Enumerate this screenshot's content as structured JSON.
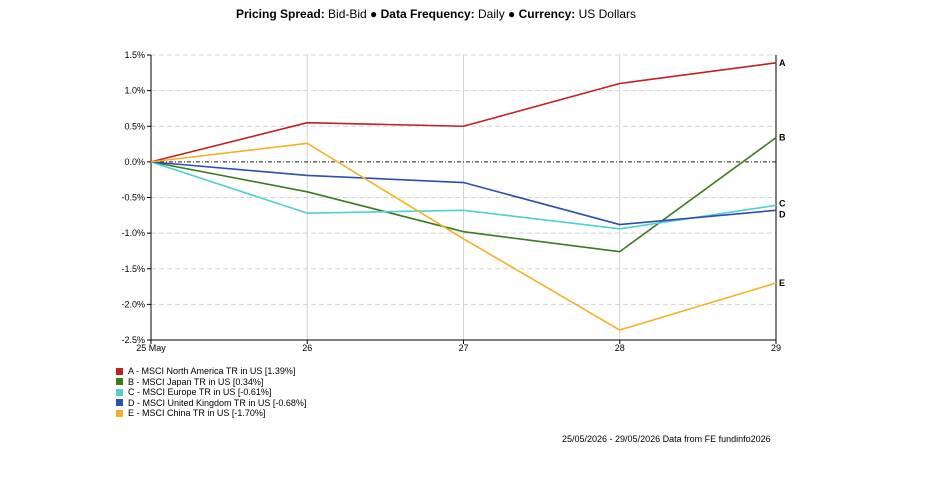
{
  "header": {
    "k1": "Pricing Spread:",
    "v1": "Bid-Bid",
    "sep1": " ● ",
    "k2": "Data Frequency:",
    "v2": "Daily",
    "sep2": " ● ",
    "k3": "Currency:",
    "v3": "US Dollars"
  },
  "footer": "25/05/2026 - 29/05/2026 Data from FE fundinfo2026",
  "chart_data": {
    "type": "line",
    "x": [
      "25 May",
      "26",
      "27",
      "28",
      "29"
    ],
    "y_ticks": [
      "1.5%",
      "1.0%",
      "0.5%",
      "0.0%",
      "-0.5%",
      "-1.0%",
      "-1.5%",
      "-2.0%",
      "-2.5%"
    ],
    "ylim": [
      -2.5,
      1.5
    ],
    "grid": true,
    "zero_line": "dash-dot",
    "legend_position": "bottom-left",
    "series": [
      {
        "letter": "A",
        "name": "A - MSCI North America TR in US [1.39%]",
        "color": "#c0201f",
        "values": [
          0,
          0.55,
          0.5,
          1.1,
          1.39
        ]
      },
      {
        "letter": "B",
        "name": "B - MSCI Japan TR in US [0.34%]",
        "color": "#3d7a1f",
        "values": [
          0,
          -0.42,
          -0.98,
          -1.26,
          0.34
        ]
      },
      {
        "letter": "C",
        "name": "C - MSCI Europe TR in US [-0.61%]",
        "color": "#4dd0d0",
        "values": [
          0,
          -0.72,
          -0.68,
          -0.94,
          -0.61
        ]
      },
      {
        "letter": "D",
        "name": "D - MSCI United Kingdom TR in US [-0.68%]",
        "color": "#2a4fb0",
        "values": [
          0,
          -0.19,
          -0.29,
          -0.88,
          -0.68
        ]
      },
      {
        "letter": "E",
        "name": "E - MSCI China TR in US [-1.70%]",
        "color": "#f5b025",
        "values": [
          0,
          0.26,
          -1.08,
          -2.36,
          -1.7
        ]
      }
    ]
  }
}
